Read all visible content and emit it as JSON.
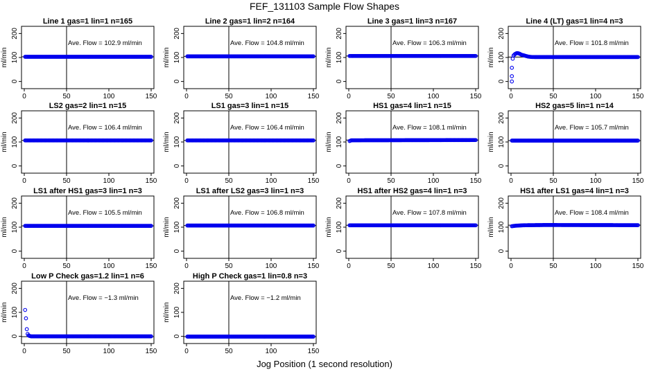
{
  "figure": {
    "title": "FEF_131103  Sample Flow Shapes",
    "xlabel": "Jog Position (1 second resolution)"
  },
  "chart_data": [
    {
      "type": "scatter",
      "title": "Line 1 gas=1 lin=1 n=165",
      "annotation": "Ave. Flow =  102.9  ml/min",
      "ylabel": "ml/min",
      "xlim": [
        0,
        150
      ],
      "ylim": [
        -30,
        230
      ],
      "xticks": [
        0,
        50,
        100,
        150
      ],
      "yticks": [
        0,
        100,
        200
      ],
      "vline": 50,
      "hline": 102.9,
      "marker_color": "#0000ee",
      "points": [
        [
          1,
          102.9
        ],
        [
          150,
          102.9
        ]
      ]
    },
    {
      "type": "scatter",
      "title": "Line 2 gas=1 lin=2 n=164",
      "annotation": "Ave. Flow =  104.8  ml/min",
      "ylabel": "ml/min",
      "xlim": [
        0,
        150
      ],
      "ylim": [
        -30,
        230
      ],
      "xticks": [
        0,
        50,
        100,
        150
      ],
      "yticks": [
        0,
        100,
        200
      ],
      "vline": 50,
      "hline": 104.8,
      "marker_color": "#0000ee",
      "points": [
        [
          1,
          104.8
        ],
        [
          150,
          104.8
        ]
      ]
    },
    {
      "type": "scatter",
      "title": "Line 3 gas=1 lin=3 n=167",
      "annotation": "Ave. Flow =  106.3  ml/min",
      "ylabel": "ml/min",
      "xlim": [
        0,
        150
      ],
      "ylim": [
        -30,
        230
      ],
      "xticks": [
        0,
        50,
        100,
        150
      ],
      "yticks": [
        0,
        100,
        200
      ],
      "vline": 50,
      "hline": 106.3,
      "marker_color": "#0000ee",
      "points": [
        [
          1,
          106.3
        ],
        [
          150,
          106.3
        ]
      ]
    },
    {
      "type": "scatter",
      "title": "Line 4 (LT) gas=1 lin=4 n=3",
      "annotation": "Ave. Flow =  101.8  ml/min",
      "ylabel": "ml/min",
      "xlim": [
        0,
        150
      ],
      "ylim": [
        -30,
        230
      ],
      "xticks": [
        0,
        50,
        100,
        150
      ],
      "yticks": [
        0,
        100,
        200
      ],
      "vline": 50,
      "hline": 101.8,
      "marker_color": "#0000ee",
      "points": [
        [
          1,
          0
        ],
        [
          1,
          22
        ],
        [
          1,
          57
        ],
        [
          2,
          95
        ],
        [
          3,
          108
        ],
        [
          4,
          112
        ],
        [
          5,
          115
        ],
        [
          6,
          117
        ],
        [
          7,
          118
        ],
        [
          8,
          118
        ],
        [
          9,
          117
        ],
        [
          10,
          116
        ],
        [
          11,
          114
        ],
        [
          12,
          112
        ],
        [
          13,
          111
        ],
        [
          14,
          110
        ],
        [
          15,
          109
        ],
        [
          16,
          108
        ],
        [
          17,
          107
        ],
        [
          18,
          106
        ],
        [
          19,
          105
        ],
        [
          20,
          104
        ],
        [
          22,
          103
        ],
        [
          25,
          102
        ],
        [
          30,
          101.8
        ],
        [
          150,
          101.8
        ]
      ]
    },
    {
      "type": "scatter",
      "title": "LS2 gas=2 lin=1 n=15",
      "annotation": "Ave. Flow =  106.4  ml/min",
      "ylabel": "ml/min",
      "xlim": [
        0,
        150
      ],
      "ylim": [
        -30,
        230
      ],
      "xticks": [
        0,
        50,
        100,
        150
      ],
      "yticks": [
        0,
        100,
        200
      ],
      "vline": 50,
      "hline": 106.4,
      "marker_color": "#0000ee",
      "points": [
        [
          1,
          106.4
        ],
        [
          150,
          106.4
        ]
      ]
    },
    {
      "type": "scatter",
      "title": "LS1 gas=3 lin=1 n=15",
      "annotation": "Ave. Flow =  106.4  ml/min",
      "ylabel": "ml/min",
      "xlim": [
        0,
        150
      ],
      "ylim": [
        -30,
        230
      ],
      "xticks": [
        0,
        50,
        100,
        150
      ],
      "yticks": [
        0,
        100,
        200
      ],
      "vline": 50,
      "hline": 106.4,
      "marker_color": "#0000ee",
      "points": [
        [
          1,
          106.4
        ],
        [
          150,
          106.4
        ]
      ]
    },
    {
      "type": "scatter",
      "title": "HS1 gas=4 lin=1 n=15",
      "annotation": "Ave. Flow =  108.1  ml/min",
      "ylabel": "ml/min",
      "xlim": [
        0,
        150
      ],
      "ylim": [
        -30,
        230
      ],
      "xticks": [
        0,
        50,
        100,
        150
      ],
      "yticks": [
        0,
        100,
        200
      ],
      "vline": 50,
      "hline": 108.1,
      "marker_color": "#0000ee",
      "points": [
        [
          1,
          104
        ],
        [
          3,
          107
        ],
        [
          150,
          108.1
        ]
      ]
    },
    {
      "type": "scatter",
      "title": "HS2 gas=5 lin=1 n=14",
      "annotation": "Ave. Flow =  105.7  ml/min",
      "ylabel": "ml/min",
      "xlim": [
        0,
        150
      ],
      "ylim": [
        -30,
        230
      ],
      "xticks": [
        0,
        50,
        100,
        150
      ],
      "yticks": [
        0,
        100,
        200
      ],
      "vline": 50,
      "hline": 105.7,
      "marker_color": "#0000ee",
      "points": [
        [
          1,
          105.7
        ],
        [
          150,
          105.7
        ]
      ]
    },
    {
      "type": "scatter",
      "title": "LS1 after HS1 gas=3 lin=1 n=3",
      "annotation": "Ave. Flow =  105.5  ml/min",
      "ylabel": "ml/min",
      "xlim": [
        0,
        150
      ],
      "ylim": [
        -30,
        230
      ],
      "xticks": [
        0,
        50,
        100,
        150
      ],
      "yticks": [
        0,
        100,
        200
      ],
      "vline": 50,
      "hline": 105.5,
      "marker_color": "#0000ee",
      "points": [
        [
          1,
          105.5
        ],
        [
          150,
          105.5
        ]
      ]
    },
    {
      "type": "scatter",
      "title": "LS1 after LS2 gas=3 lin=1 n=3",
      "annotation": "Ave. Flow =  106.8  ml/min",
      "ylabel": "ml/min",
      "xlim": [
        0,
        150
      ],
      "ylim": [
        -30,
        230
      ],
      "xticks": [
        0,
        50,
        100,
        150
      ],
      "yticks": [
        0,
        100,
        200
      ],
      "vline": 50,
      "hline": 106.8,
      "marker_color": "#0000ee",
      "points": [
        [
          1,
          106.8
        ],
        [
          150,
          106.8
        ]
      ]
    },
    {
      "type": "scatter",
      "title": "HS1 after HS2 gas=4 lin=1 n=3",
      "annotation": "Ave. Flow =  107.8  ml/min",
      "ylabel": "ml/min",
      "xlim": [
        0,
        150
      ],
      "ylim": [
        -30,
        230
      ],
      "xticks": [
        0,
        50,
        100,
        150
      ],
      "yticks": [
        0,
        100,
        200
      ],
      "vline": 50,
      "hline": 107.8,
      "marker_color": "#0000ee",
      "points": [
        [
          1,
          107.8
        ],
        [
          150,
          107.8
        ]
      ]
    },
    {
      "type": "scatter",
      "title": "HS1 after LS1 gas=4 lin=1 n=3",
      "annotation": "Ave. Flow =  108.4  ml/min",
      "ylabel": "ml/min",
      "xlim": [
        0,
        150
      ],
      "ylim": [
        -30,
        230
      ],
      "xticks": [
        0,
        50,
        100,
        150
      ],
      "yticks": [
        0,
        100,
        200
      ],
      "vline": 50,
      "hline": 108.4,
      "marker_color": "#0000ee",
      "points": [
        [
          1,
          104
        ],
        [
          5,
          106
        ],
        [
          15,
          108
        ],
        [
          40,
          109
        ],
        [
          150,
          108.4
        ]
      ]
    },
    {
      "type": "scatter",
      "title": "Low P Check gas=1.2 lin=1 n=6",
      "annotation": "Ave. Flow =  −1.3  ml/min",
      "ylabel": "ml/min",
      "xlim": [
        0,
        150
      ],
      "ylim": [
        -30,
        230
      ],
      "xticks": [
        0,
        50,
        100,
        150
      ],
      "yticks": [
        0,
        100,
        200
      ],
      "vline": 50,
      "hline": -1.3,
      "marker_color": "#0000ee",
      "points": [
        [
          1,
          110
        ],
        [
          2,
          75
        ],
        [
          3,
          30
        ],
        [
          4,
          10
        ],
        [
          5,
          4
        ],
        [
          6,
          2
        ],
        [
          7,
          1
        ],
        [
          8,
          0
        ],
        [
          9,
          0
        ],
        [
          10,
          0
        ],
        [
          12,
          0
        ],
        [
          14,
          0
        ],
        [
          150,
          0
        ]
      ]
    },
    {
      "type": "scatter",
      "title": "High P Check gas=1 lin=0.8 n=3",
      "annotation": "Ave. Flow =  −1.2  ml/min",
      "ylabel": "ml/min",
      "xlim": [
        0,
        150
      ],
      "ylim": [
        -30,
        230
      ],
      "xticks": [
        0,
        50,
        100,
        150
      ],
      "yticks": [
        0,
        100,
        200
      ],
      "vline": 50,
      "hline": -1.2,
      "marker_color": "#0000ee",
      "points": [
        [
          1,
          -1.2
        ],
        [
          150,
          -1.2
        ]
      ]
    }
  ]
}
